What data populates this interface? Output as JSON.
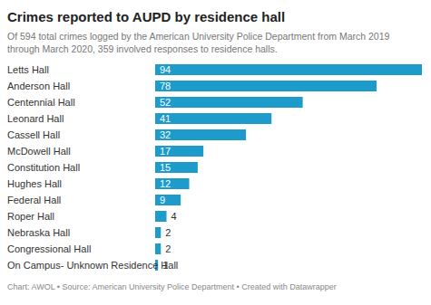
{
  "chart_data": {
    "type": "bar",
    "title": "Crimes reported to AUPD by residence hall",
    "subtitle": "Of 594 total crimes logged by the American University Police Department from March 2019 through March 2020, 359 involved responses to residence halls.",
    "source": "Chart: AWOL • Source: American University Police Department • Created with Datawrapper",
    "categories": [
      "Letts Hall",
      "Anderson Hall",
      "Centennial Hall",
      "Leonard Hall",
      "Cassell Hall",
      "McDowell Hall",
      "Constitution Hall",
      "Hughes Hall",
      "Federal Hall",
      "Roper Hall",
      "Nebraska Hall",
      "Congressional Hall",
      "On Campus- Unknown Residence Hall"
    ],
    "values": [
      94,
      78,
      52,
      41,
      32,
      17,
      15,
      12,
      9,
      4,
      2,
      2,
      1
    ],
    "color": "#1d9bcb",
    "orientation": "horizontal",
    "xlim": [
      0,
      94
    ],
    "data_labels": true,
    "tick_labels": "y",
    "grid": false
  }
}
